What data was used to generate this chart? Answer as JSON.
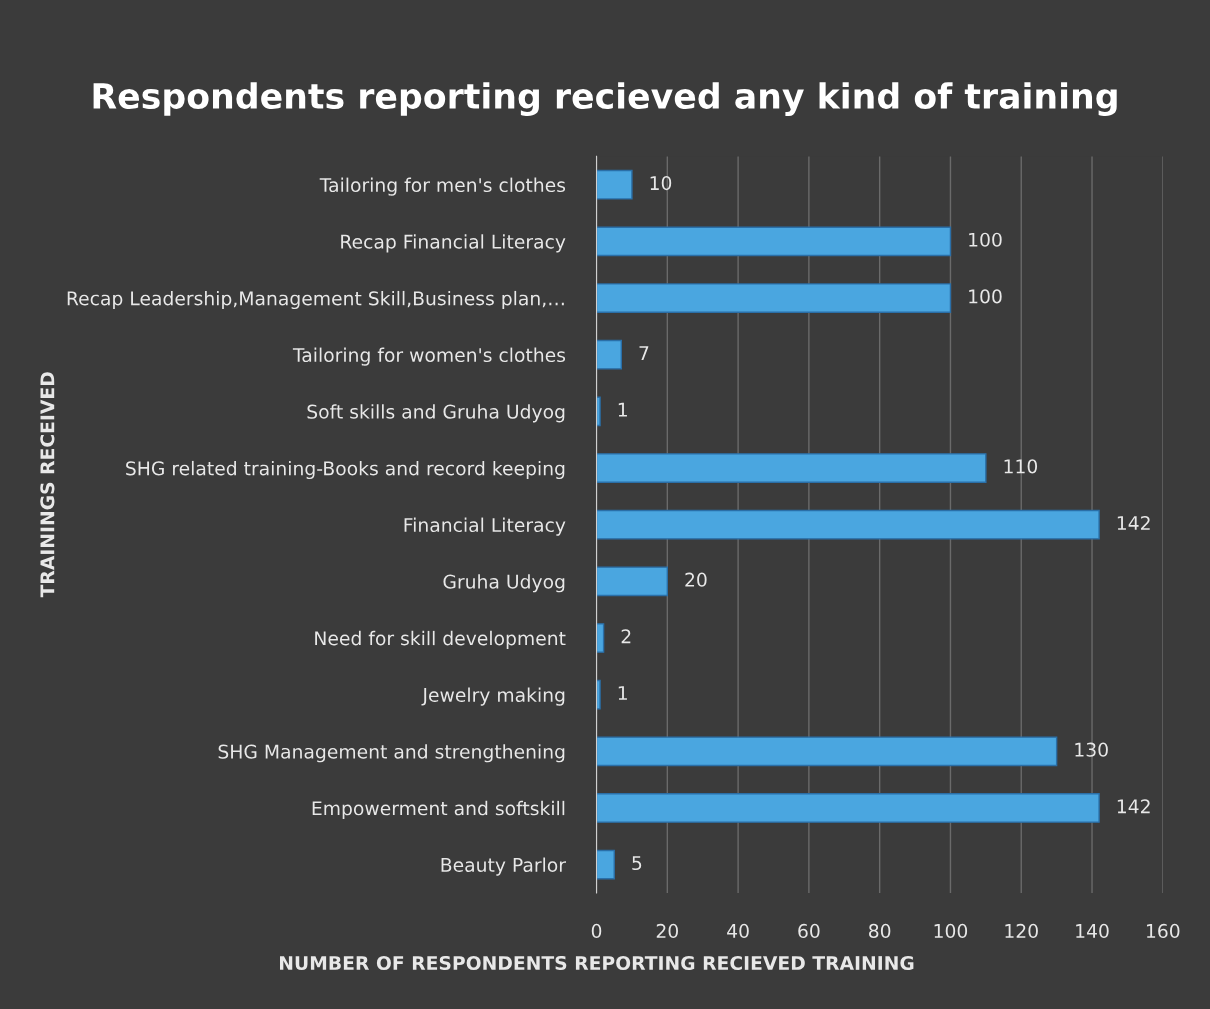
{
  "chart_data": {
    "type": "bar",
    "orientation": "horizontal",
    "title": "Respondents reporting recieved any kind of training",
    "xlabel": "NUMBER OF RESPONDENTS REPORTING RECIEVED TRAINING",
    "ylabel": "TRAININGS RECEIVED",
    "categories": [
      "Tailoring for men's clothes",
      "Recap Financial Literacy",
      "Recap Leadership,Management Skill,Business plan,…",
      "Tailoring for women's clothes",
      "Soft skills and Gruha Udyog",
      "SHG related training-Books and record keeping",
      "Financial Literacy",
      "Gruha Udyog",
      "Need for skill development",
      "Jewelry making",
      "SHG Management and strengthening",
      "Empowerment and softskill",
      "Beauty Parlor"
    ],
    "values": [
      10,
      100,
      100,
      7,
      1,
      110,
      142,
      20,
      2,
      1,
      130,
      142,
      5
    ],
    "color": "#4aa6e0",
    "xlim": [
      0,
      160
    ],
    "xticks": [
      0,
      20,
      40,
      60,
      80,
      100,
      120,
      140,
      160
    ],
    "grid": "x",
    "data_labels": true
  }
}
